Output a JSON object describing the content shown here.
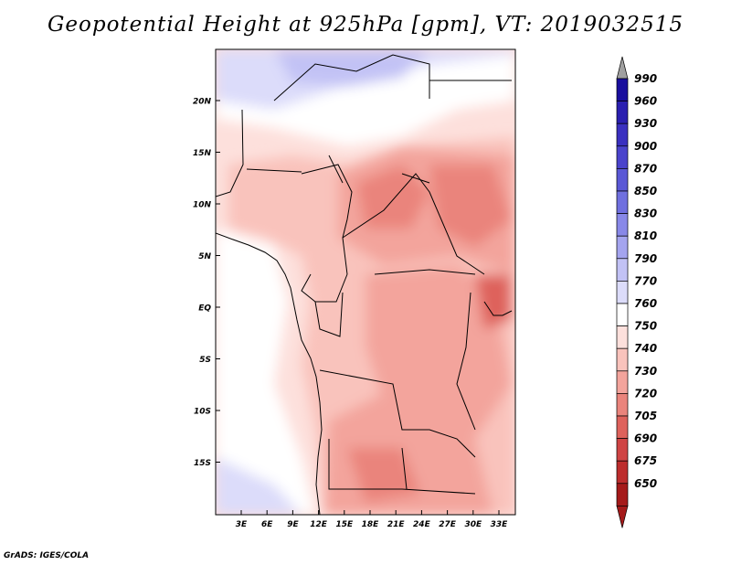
{
  "title": "Geopotential Height at 925hPa [gpm], VT: 2019032515",
  "footer": "GrADS: IGES/COLA",
  "map": {
    "lat_ticks": [
      "20N",
      "15N",
      "10N",
      "5N",
      "EQ",
      "5S",
      "10S",
      "15S"
    ],
    "lon_ticks": [
      "3E",
      "6E",
      "9E",
      "12E",
      "15E",
      "18E",
      "21E",
      "24E",
      "27E",
      "30E",
      "33E"
    ]
  },
  "colorbar": {
    "labels": [
      "990",
      "960",
      "930",
      "900",
      "870",
      "850",
      "830",
      "810",
      "790",
      "770",
      "760",
      "750",
      "740",
      "730",
      "720",
      "705",
      "690",
      "675",
      "650"
    ],
    "colors": [
      "#1a0f9e",
      "#2a1fb0",
      "#3a30c0",
      "#4a43cc",
      "#5a58d6",
      "#6f6fdf",
      "#8888e8",
      "#a4a4ef",
      "#c2c2f5",
      "#dcdcfa",
      "#ffffff",
      "#fde0dc",
      "#f9c3bc",
      "#f3a49c",
      "#ea847c",
      "#de625c",
      "#cf4444",
      "#bd2d2d",
      "#a51a1a"
    ]
  }
}
